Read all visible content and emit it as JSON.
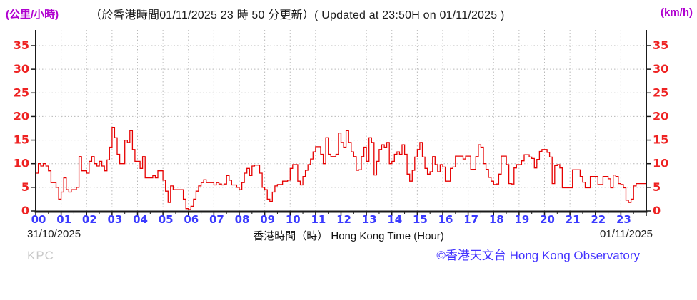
{
  "header": {
    "unit_left": "(公里/小時)",
    "title_zh": "（於香港時間01/11/2025 23 時 50 分更新）",
    "title_en": "( Updated at 23:50H on 01/11/2025 )",
    "unit_right": "(km/h)"
  },
  "axis": {
    "date_left": "31/10/2025",
    "xlabel": "香港時間（時） Hong Kong Time (Hour)",
    "date_right": "01/11/2025"
  },
  "footer": {
    "station": "KPC",
    "credit": "©香港天文台 Hong Kong Observatory"
  },
  "colors": {
    "line": "#e60000",
    "y_labels": "#ee2222",
    "x_labels": "#3a3aff",
    "units": "#b000d0",
    "credit": "#4333ff",
    "station": "#c9c9c9",
    "grid": "#b8b8b8",
    "axis": "#1a1a1a"
  },
  "chart_data": {
    "type": "line",
    "title": "Wind speed (km/h) at KPC, 10-minute values over 24 hours",
    "xlabel": "香港時間（時） Hong Kong Time (Hour)",
    "ylabel_left": "(公里/小時)",
    "ylabel_right": "(km/h)",
    "xlim": [
      0,
      24
    ],
    "ylim": [
      0,
      37.5
    ],
    "grid": "dotted",
    "legend": "none",
    "y_ticks": [
      0,
      5,
      10,
      15,
      20,
      25,
      30,
      35
    ],
    "x_tick_labels": [
      "00",
      "01",
      "02",
      "03",
      "04",
      "05",
      "06",
      "07",
      "08",
      "09",
      "10",
      "11",
      "12",
      "13",
      "14",
      "15",
      "16",
      "17",
      "18",
      "19",
      "20",
      "21",
      "22",
      "23"
    ],
    "x_start": 0,
    "x_step": 0.1,
    "series": [
      {
        "name": "wind-speed-kmh",
        "values": [
          8,
          10,
          9.5,
          10,
          9.5,
          8.5,
          6,
          6,
          5,
          2.5,
          4,
          7,
          4.5,
          4,
          4.5,
          4.5,
          5,
          11.5,
          8.5,
          8.5,
          8,
          10.5,
          11.5,
          10,
          9.5,
          10.5,
          9.5,
          8.5,
          10.8,
          13.5,
          17.7,
          15.5,
          12,
          10,
          10,
          15,
          14.5,
          17,
          13,
          10.5,
          10.5,
          9,
          11.5,
          7,
          7,
          7,
          7.5,
          7,
          8.5,
          8.5,
          6.5,
          4.2,
          1.8,
          5.3,
          4.5,
          4.5,
          4.5,
          4.5,
          2.5,
          0.5,
          0.3,
          1,
          2.5,
          4.2,
          5.3,
          6,
          6.6,
          6,
          6,
          6,
          5.5,
          6,
          5.7,
          5.5,
          5.7,
          7.5,
          6.5,
          5.5,
          5.5,
          5,
          4.5,
          6,
          8,
          9,
          7.5,
          9.5,
          9.7,
          9.7,
          8,
          5,
          4.5,
          2.5,
          2,
          4,
          5.3,
          5.6,
          5.6,
          6.3,
          6.3,
          6.5,
          9,
          9.8,
          9.8,
          6.3,
          5.5,
          7.3,
          8.6,
          9.8,
          11,
          12.5,
          13.6,
          13.6,
          12,
          10,
          15.5,
          12,
          11.5,
          11.5,
          12,
          16.5,
          14.5,
          13.5,
          17,
          14.5,
          12.5,
          11.5,
          8.6,
          8.7,
          11.5,
          13.5,
          10.5,
          15.5,
          14.5,
          7.6,
          10.5,
          13,
          14,
          13.5,
          14.5,
          10,
          10.5,
          12,
          12.5,
          12,
          14,
          12,
          7.8,
          6.3,
          8.6,
          11.4,
          13,
          14.5,
          11.4,
          9,
          7.8,
          8.3,
          11.5,
          9.8,
          8.3,
          9.8,
          9.3,
          6.3,
          6.3,
          9,
          9.3,
          11.6,
          11.6,
          11.6,
          11,
          11.6,
          11.6,
          8.8,
          8.8,
          11.5,
          14,
          13.5,
          10,
          8.8,
          7.1,
          6.3,
          5.6,
          5.7,
          7.8,
          11.6,
          11.6,
          9.8,
          5.8,
          5.7,
          9.1,
          9.8,
          9.8,
          10.6,
          11.9,
          11.9,
          11.4,
          11.1,
          9.1,
          10.9,
          12.6,
          13,
          13,
          12.4,
          11.4,
          5.8,
          9.6,
          9.8,
          9.1,
          4.9,
          4.9,
          4.9,
          4.9,
          8.7,
          8.7,
          8.7,
          7.3,
          6.1,
          4.9,
          4.9,
          7.3,
          7.3,
          7.3,
          5.6,
          5.6,
          7.3,
          7.3,
          6.8,
          4.9,
          7.6,
          7.3,
          5.8,
          5.6,
          4.9,
          2.3,
          1.8,
          2.5,
          5.3,
          5.8,
          5.8,
          5.8,
          5.8
        ]
      }
    ]
  }
}
